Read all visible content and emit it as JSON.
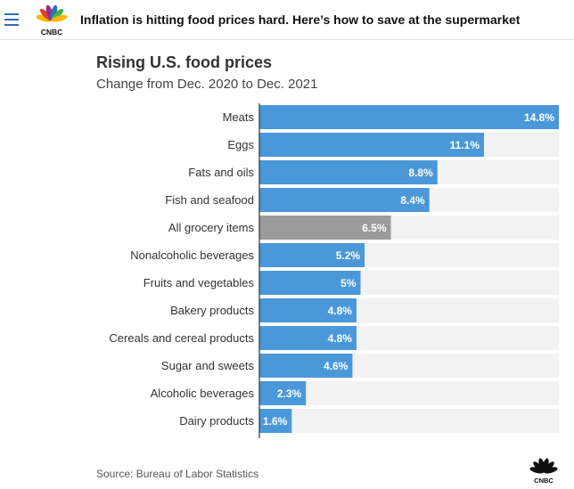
{
  "header": {
    "menu_icon": "hamburger-menu-icon",
    "logo_text": "CNBC",
    "headline": "Inflation is hitting food prices hard. Here’s how to save at the supermarket"
  },
  "colors": {
    "bar": "#4a98d9",
    "highlight_bar": "#9b9b9b",
    "track": "#f2f2f2",
    "axis": "#333333"
  },
  "chart_data": {
    "type": "bar",
    "orientation": "horizontal",
    "title": "Rising U.S. food prices",
    "subtitle": "Change from Dec. 2020 to Dec. 2021",
    "categories": [
      "Meats",
      "Eggs",
      "Fats and oils",
      "Fish and seafood",
      "All grocery items",
      "Nonalcoholic beverages",
      "Fruits and vegetables",
      "Bakery products",
      "Cereals and cereal products",
      "Sugar and sweets",
      "Alcoholic beverages",
      "Dairy products"
    ],
    "values": [
      14.8,
      11.1,
      8.8,
      8.4,
      6.5,
      5.2,
      5,
      4.8,
      4.8,
      4.6,
      2.3,
      1.6
    ],
    "labels": [
      "14.8%",
      "11.1%",
      "8.8%",
      "8.4%",
      "6.5%",
      "5.2%",
      "5%",
      "4.8%",
      "4.8%",
      "4.6%",
      "2.3%",
      "1.6%"
    ],
    "highlight": [
      "All grocery items"
    ],
    "xlim": [
      0,
      14.8
    ],
    "unit": "%",
    "grid": false
  },
  "footer": {
    "source": "Source: Bureau of Labor Statistics",
    "logo_text": "CNBC"
  }
}
